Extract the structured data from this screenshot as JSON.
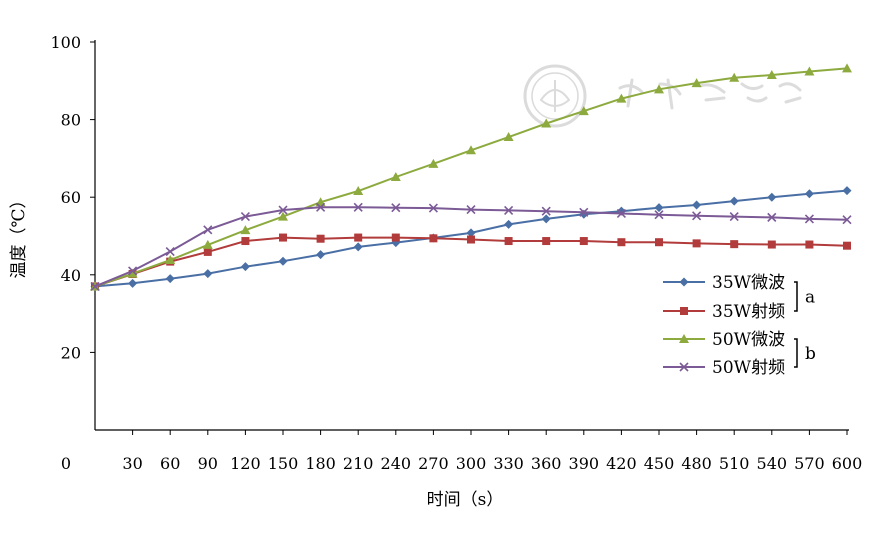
{
  "chart_data": {
    "type": "line",
    "xlabel": "时间（s）",
    "ylabel": "温度（℃）",
    "x_origin_label": "0",
    "x": [
      0,
      30,
      60,
      90,
      120,
      150,
      180,
      210,
      240,
      270,
      300,
      330,
      360,
      390,
      420,
      450,
      480,
      510,
      540,
      570,
      600
    ],
    "x_tick_labels": [
      "30",
      "60",
      "90",
      "120",
      "150",
      "180",
      "210",
      "240",
      "270",
      "300",
      "330",
      "360",
      "390",
      "420",
      "450",
      "480",
      "510",
      "540",
      "570",
      "600"
    ],
    "xlim": [
      0,
      600
    ],
    "ylim": [
      0,
      100
    ],
    "y_ticks": [
      20,
      40,
      60,
      80,
      100
    ],
    "grid": false,
    "legend_position": "right",
    "series": [
      {
        "name": "35W微波",
        "color": "#4A6FA5",
        "marker": "diamond",
        "values": [
          37.0,
          37.8,
          39.0,
          40.3,
          42.1,
          43.5,
          45.2,
          47.2,
          48.3,
          49.5,
          50.8,
          53.0,
          54.4,
          55.6,
          56.4,
          57.3,
          58.0,
          59.0,
          60.0,
          60.9,
          61.7
        ]
      },
      {
        "name": "35W射频",
        "color": "#B23B3B",
        "marker": "square",
        "values": [
          37.0,
          40.2,
          43.4,
          45.9,
          48.7,
          49.6,
          49.3,
          49.6,
          49.6,
          49.4,
          49.1,
          48.7,
          48.7,
          48.7,
          48.4,
          48.4,
          48.1,
          47.9,
          47.8,
          47.8,
          47.5
        ]
      },
      {
        "name": "50W微波",
        "color": "#8CAA3E",
        "marker": "triangle",
        "values": [
          37.0,
          40.3,
          43.8,
          47.7,
          51.5,
          55.0,
          58.7,
          61.6,
          65.2,
          68.6,
          72.1,
          75.5,
          79.0,
          82.2,
          85.4,
          87.8,
          89.4,
          90.8,
          91.5,
          92.4,
          93.2
        ]
      },
      {
        "name": "50W射频",
        "color": "#7B5A96",
        "marker": "x",
        "values": [
          37.0,
          41.0,
          46.0,
          51.6,
          55.0,
          56.7,
          57.4,
          57.4,
          57.3,
          57.2,
          56.8,
          56.6,
          56.4,
          56.1,
          55.8,
          55.5,
          55.2,
          55.0,
          54.8,
          54.4,
          54.2
        ]
      }
    ],
    "legend_brackets": [
      {
        "label": "a",
        "series": [
          "35W微波",
          "35W射频"
        ]
      },
      {
        "label": "b",
        "series": [
          "50W微波",
          "50W射频"
        ]
      }
    ]
  }
}
